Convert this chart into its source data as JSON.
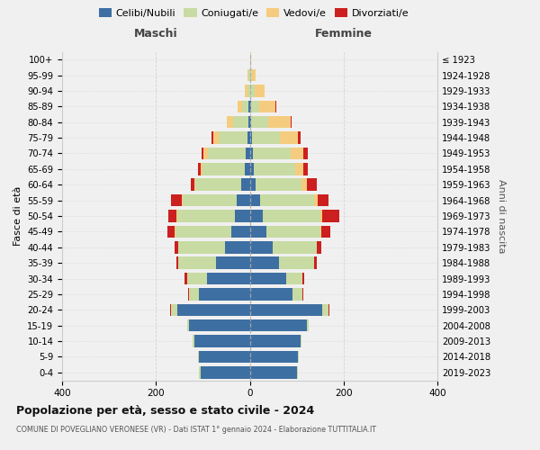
{
  "age_groups": [
    "0-4",
    "5-9",
    "10-14",
    "15-19",
    "20-24",
    "25-29",
    "30-34",
    "35-39",
    "40-44",
    "45-49",
    "50-54",
    "55-59",
    "60-64",
    "65-69",
    "70-74",
    "75-79",
    "80-84",
    "85-89",
    "90-94",
    "95-99",
    "100+"
  ],
  "birth_years": [
    "2019-2023",
    "2014-2018",
    "2009-2013",
    "2004-2008",
    "1999-2003",
    "1994-1998",
    "1989-1993",
    "1984-1988",
    "1979-1983",
    "1974-1978",
    "1969-1973",
    "1964-1968",
    "1959-1963",
    "1954-1958",
    "1949-1953",
    "1944-1948",
    "1939-1943",
    "1934-1938",
    "1929-1933",
    "1924-1928",
    "≤ 1923"
  ],
  "maschi": {
    "celibi": [
      105,
      108,
      118,
      130,
      155,
      108,
      92,
      72,
      52,
      40,
      32,
      28,
      18,
      10,
      8,
      5,
      3,
      2,
      0,
      0,
      0
    ],
    "coniugati": [
      3,
      3,
      3,
      3,
      12,
      22,
      42,
      80,
      100,
      118,
      122,
      115,
      98,
      90,
      82,
      62,
      32,
      14,
      5,
      2,
      0
    ],
    "vedovi": [
      0,
      0,
      0,
      0,
      0,
      0,
      0,
      0,
      0,
      2,
      2,
      2,
      2,
      5,
      8,
      10,
      14,
      10,
      5,
      2,
      0
    ],
    "divorziati": [
      0,
      0,
      0,
      0,
      2,
      2,
      5,
      5,
      8,
      15,
      18,
      22,
      8,
      5,
      5,
      5,
      0,
      0,
      0,
      0,
      0
    ]
  },
  "femmine": {
    "nubili": [
      100,
      102,
      108,
      122,
      155,
      92,
      78,
      62,
      48,
      35,
      28,
      22,
      12,
      8,
      7,
      5,
      2,
      2,
      1,
      0,
      0
    ],
    "coniugate": [
      3,
      3,
      3,
      3,
      12,
      20,
      35,
      75,
      95,
      115,
      122,
      115,
      98,
      88,
      80,
      60,
      38,
      18,
      10,
      5,
      0
    ],
    "vedove": [
      0,
      0,
      0,
      0,
      0,
      0,
      0,
      0,
      0,
      3,
      5,
      8,
      12,
      18,
      28,
      38,
      48,
      35,
      20,
      8,
      2
    ],
    "divorziate": [
      0,
      0,
      0,
      0,
      2,
      2,
      3,
      5,
      10,
      18,
      35,
      22,
      20,
      10,
      8,
      5,
      2,
      2,
      0,
      0,
      0
    ]
  },
  "colors": {
    "celibi_nubili": "#3e6fa3",
    "coniugati": "#c8dba2",
    "vedovi": "#f5cc7f",
    "divorziati": "#cc1f1f"
  },
  "xlim": 400,
  "title": "Popolazione per età, sesso e stato civile - 2024",
  "subtitle": "COMUNE DI POVEGLIANO VERONESE (VR) - Dati ISTAT 1° gennaio 2024 - Elaborazione TUTTITALIA.IT",
  "ylabel": "Fasce di età",
  "ylabel2": "Anni di nascita",
  "bg_color": "#f0f0f0",
  "grid_color": "#cccccc"
}
